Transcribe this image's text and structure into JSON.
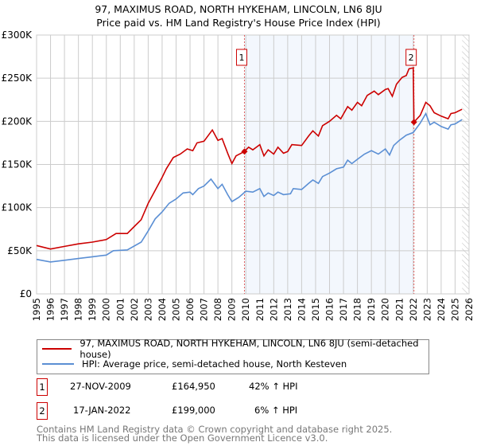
{
  "title_line1": "97, MAXIMUS ROAD, NORTH HYKEHAM, LINCOLN, LN6 8JU",
  "title_line2": "Price paid vs. HM Land Registry's House Price Index (HPI)",
  "chart_data": {
    "type": "line",
    "xlim": [
      1995,
      2026
    ],
    "ylim": [
      0,
      300000
    ],
    "x_ticks": [
      "1995",
      "1996",
      "1997",
      "1998",
      "1999",
      "2000",
      "2001",
      "2002",
      "2003",
      "2004",
      "2005",
      "2006",
      "2007",
      "2008",
      "2009",
      "2010",
      "2011",
      "2012",
      "2013",
      "2014",
      "2015",
      "2016",
      "2017",
      "2018",
      "2019",
      "2020",
      "2021",
      "2022",
      "2023",
      "2024",
      "2025",
      "2026"
    ],
    "y_ticks": [
      {
        "v": 0,
        "label": "£0"
      },
      {
        "v": 50000,
        "label": "£50K"
      },
      {
        "v": 100000,
        "label": "£100K"
      },
      {
        "v": 150000,
        "label": "£150K"
      },
      {
        "v": 200000,
        "label": "£200K"
      },
      {
        "v": 250000,
        "label": "£250K"
      },
      {
        "v": 300000,
        "label": "£300K"
      }
    ],
    "grid": true,
    "shaded_range": [
      2009.9,
      2022.05
    ],
    "forecast_hatch_from": 2025.5,
    "series": [
      {
        "name": "97, MAXIMUS ROAD, NORTH HYKEHAM, LINCOLN, LN6 8JU (semi-detached house)",
        "color": "#cc0000",
        "x": [
          1995,
          1996,
          1997,
          1998,
          1999,
          2000,
          2000.7,
          2001.5,
          2002,
          2002.5,
          2003,
          2003.5,
          2004,
          2004.3,
          2004.8,
          2005.3,
          2005.8,
          2006.2,
          2006.5,
          2007,
          2007.6,
          2008,
          2008.3,
          2008.7,
          2009,
          2009.3,
          2009.9,
          2010.2,
          2010.5,
          2011,
          2011.3,
          2011.6,
          2012,
          2012.3,
          2012.7,
          2013,
          2013.3,
          2014,
          2014.5,
          2014.8,
          2015.2,
          2015.5,
          2016,
          2016.5,
          2016.8,
          2017.3,
          2017.6,
          2018,
          2018.3,
          2018.7,
          2019.2,
          2019.5,
          2020,
          2020.2,
          2020.5,
          2020.8,
          2021.2,
          2021.5,
          2021.7,
          2022.0,
          2022.05,
          2022.5,
          2022.9,
          2023.2,
          2023.5,
          2024,
          2024.5,
          2024.7,
          2025,
          2025.5
        ],
        "y": [
          56000,
          52000,
          55000,
          58000,
          60000,
          63000,
          70000,
          70000,
          78000,
          86000,
          105000,
          120000,
          135000,
          145000,
          158000,
          162000,
          168000,
          166000,
          175000,
          177000,
          190000,
          178000,
          180000,
          163000,
          151000,
          160000,
          165000,
          170000,
          167000,
          173000,
          160000,
          167000,
          162000,
          170000,
          163000,
          165000,
          173000,
          172000,
          183000,
          189000,
          183000,
          195000,
          200000,
          207000,
          203000,
          217000,
          213000,
          222000,
          218000,
          230000,
          235000,
          231000,
          237000,
          238000,
          229000,
          243000,
          251000,
          253000,
          261000,
          262000,
          199000,
          207000,
          222000,
          218000,
          210000,
          206000,
          203000,
          209000,
          210000,
          214000
        ]
      },
      {
        "name": "HPI: Average price, semi-detached house, North Kesteven",
        "color": "#5b8fd4",
        "x": [
          1995,
          1996,
          1997,
          1998,
          1999,
          2000,
          2000.5,
          2001.5,
          2002.5,
          2003,
          2003.5,
          2004,
          2004.5,
          2005,
          2005.5,
          2006,
          2006.2,
          2006.6,
          2007,
          2007.5,
          2008,
          2008.3,
          2008.7,
          2009,
          2009.5,
          2010,
          2010.5,
          2011,
          2011.3,
          2011.6,
          2012,
          2012.3,
          2012.7,
          2013.2,
          2013.4,
          2014,
          2014.5,
          2014.8,
          2015.2,
          2015.5,
          2016,
          2016.5,
          2017,
          2017.3,
          2017.6,
          2018,
          2018.5,
          2019,
          2019.5,
          2020,
          2020.3,
          2020.6,
          2021,
          2021.5,
          2022,
          2022.5,
          2022.9,
          2023.2,
          2023.5,
          2024,
          2024.5,
          2024.7,
          2025,
          2025.5
        ],
        "y": [
          40000,
          37000,
          39000,
          41000,
          43000,
          45000,
          50000,
          51000,
          60000,
          73000,
          87000,
          95000,
          105000,
          110000,
          117000,
          118000,
          115000,
          122000,
          125000,
          133000,
          122000,
          127000,
          115000,
          107000,
          112000,
          119000,
          118000,
          122000,
          113000,
          117000,
          114000,
          118000,
          115000,
          116000,
          122000,
          121000,
          128000,
          132000,
          128000,
          136000,
          140000,
          145000,
          147000,
          155000,
          151000,
          156000,
          162000,
          166000,
          162000,
          168000,
          161000,
          172000,
          178000,
          184000,
          187000,
          198000,
          209000,
          196000,
          199000,
          194000,
          191000,
          196000,
          197000,
          202000
        ]
      }
    ],
    "annotations": [
      {
        "label": "1",
        "x": 2009.9,
        "y": 164950
      },
      {
        "label": "2",
        "x": 2022.05,
        "y": 199000
      }
    ]
  },
  "legend": {
    "series1": "97, MAXIMUS ROAD, NORTH HYKEHAM, LINCOLN, LN6 8JU (semi-detached house)",
    "series2": "HPI: Average price, semi-detached house, North Kesteven"
  },
  "sales": [
    {
      "num": "1",
      "date": "27-NOV-2009",
      "price": "£164,950",
      "hpi": "42% ↑ HPI"
    },
    {
      "num": "2",
      "date": "17-JAN-2022",
      "price": "£199,000",
      "hpi": "6% ↑ HPI"
    }
  ],
  "footer": {
    "line1": "Contains HM Land Registry data © Crown copyright and database right 2025.",
    "line2": "This data is licensed under the Open Government Licence v3.0."
  }
}
